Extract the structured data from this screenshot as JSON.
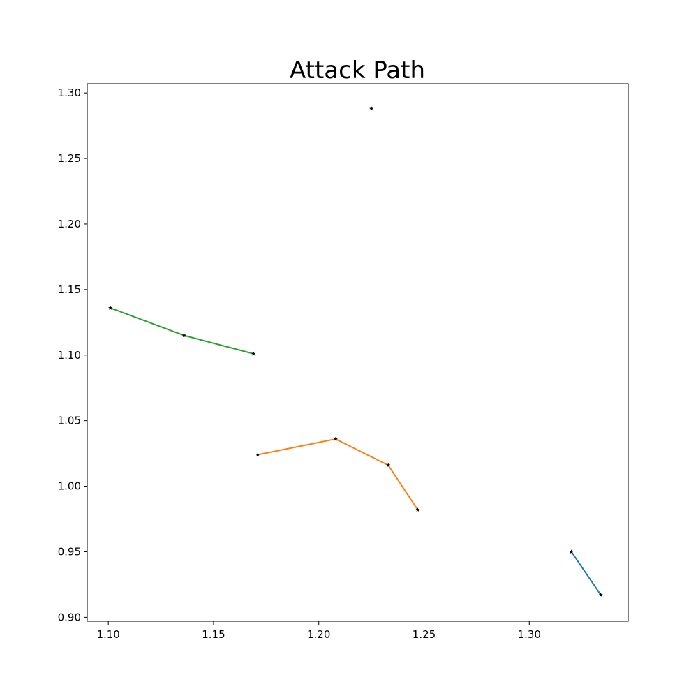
{
  "chart_data": {
    "type": "line",
    "title": "Attack Path",
    "xlabel": "",
    "ylabel": "",
    "xlim": [
      1.09,
      1.347
    ],
    "ylim": [
      0.897,
      1.307
    ],
    "xticks": [
      1.1,
      1.15,
      1.2,
      1.25,
      1.3
    ],
    "xtick_labels": [
      "1.10",
      "1.15",
      "1.20",
      "1.25",
      "1.30"
    ],
    "yticks": [
      0.9,
      0.95,
      1.0,
      1.05,
      1.1,
      1.15,
      1.2,
      1.25,
      1.3
    ],
    "ytick_labels": [
      "0.90",
      "0.95",
      "1.00",
      "1.05",
      "1.10",
      "1.15",
      "1.20",
      "1.25",
      "1.30"
    ],
    "grid": false,
    "legend": false,
    "series": [
      {
        "color": "#1f77b4",
        "points": [
          [
            1.32,
            0.95
          ],
          [
            1.334,
            0.917
          ]
        ]
      },
      {
        "color": "#ff7f0e",
        "points": [
          [
            1.171,
            1.024
          ],
          [
            1.208,
            1.036
          ],
          [
            1.233,
            1.016
          ],
          [
            1.247,
            0.982
          ]
        ]
      },
      {
        "color": "#2ca02c",
        "points": [
          [
            1.101,
            1.136
          ],
          [
            1.136,
            1.115
          ],
          [
            1.169,
            1.101
          ]
        ]
      },
      {
        "color": "#d62728",
        "points": [
          [
            1.225,
            1.288
          ]
        ]
      }
    ],
    "marker": "star",
    "marker_color": "#000000"
  }
}
